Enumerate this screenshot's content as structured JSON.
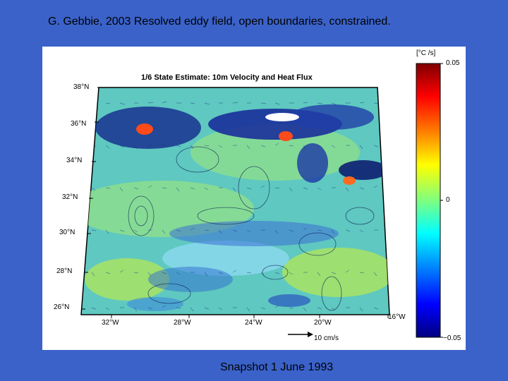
{
  "slide": {
    "title": "G. Gebbie, 2003 Resolved eddy field, open boundaries, constrained.",
    "caption": "Snapshot 1 June 1993"
  },
  "figure": {
    "title": "1/6  State Estimate: 10m Velocity and Heat Flux",
    "lat_labels": [
      "38°N",
      "36°N",
      "34°N",
      "32°N",
      "30°N",
      "28°N",
      "26°N"
    ],
    "lon_labels": [
      "32°W",
      "28°W",
      "24°W",
      "20°W",
      "16°W"
    ],
    "colorbar": {
      "unit": "[°C /s]",
      "ticks": [
        "0.05",
        "0",
        "−0.05"
      ],
      "max": 0.05,
      "min": -0.05
    },
    "scale_arrow_label": "10 cm/s"
  },
  "colors": {
    "slide_background": "#3a62c9",
    "panel_background": "#ffffff",
    "field_base": "#5fc8c0",
    "colormap": [
      "#00007f",
      "#0000ff",
      "#007fff",
      "#00ffff",
      "#7fff7f",
      "#ffff00",
      "#ff7f00",
      "#ff0000",
      "#7f0000"
    ]
  }
}
